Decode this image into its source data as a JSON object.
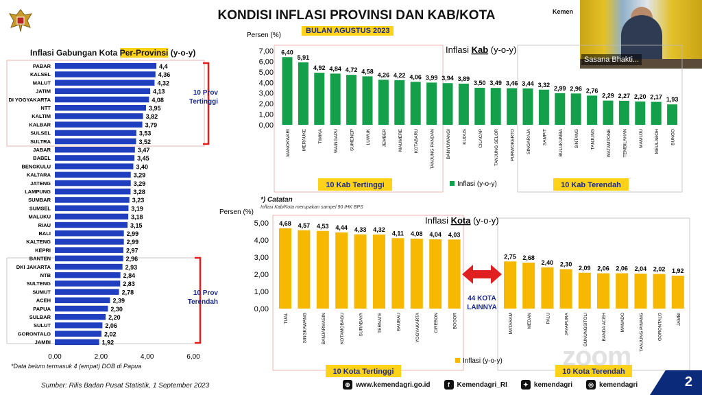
{
  "header": {
    "title": "KONDISI INFLASI PROVINSI DAN KAB/KOTA",
    "subtitle": "BULAN AGUSTUS 2023",
    "page_number": "2"
  },
  "video": {
    "name": "Sasana Bhakti...",
    "brand": "Kemen"
  },
  "left_panel": {
    "title_prefix": "Inflasi Gabungan Kota ",
    "title_highlight": "Per-Provinsi",
    "title_suffix": " (y-o-y)",
    "label_top": "10 Prov Tertinggi",
    "label_bottom": "10 Prov Terendah",
    "note": "*Data belum termasuk 4 (empat) DOB di Papua"
  },
  "kab_panel": {
    "ylabel": "Persen (%)",
    "title_prefix": "Inflasi ",
    "title_highlight": "Kab",
    "title_suffix": " (y-o-y)",
    "label_high": "10 Kab Tertinggi",
    "label_low": "10 Kab Terendah",
    "legend": "Inflasi (y-o-y)"
  },
  "kota_panel": {
    "ylabel": "Persen (%)",
    "title_prefix": "Inflasi ",
    "title_highlight": "Kota",
    "title_suffix": " (y-o-y)",
    "label_high": "10 Kota Tertinggi",
    "label_low": "10 Kota Terendah",
    "legend": "Inflasi (y-o-y)",
    "middle_label": "44 KOTA LAINNYA",
    "note_title": "*) Catatan",
    "note_text": "Inflasi Kab/Kota merupakan sampel 90 IHK BPS"
  },
  "footer": {
    "source": "Sumber: Rilis Badan Pusat Statistik,  1 September 2023",
    "website": "www.kemendagri.go.id",
    "facebook": "Kemendagri_RI",
    "twitter": "kemendagri",
    "instagram": "kemendagri"
  },
  "colors": {
    "blue": "#1f3fbf",
    "green": "#14a04a",
    "yellow": "#f6b800",
    "red": "#e02020"
  },
  "chart_data": [
    {
      "type": "bar",
      "orientation": "horizontal",
      "categories": [
        "PABAR",
        "KALSEL",
        "MALUT",
        "JATIM",
        "DI YOGYAKARTA",
        "NTT",
        "KALTIM",
        "KALBAR",
        "SULSEL",
        "SULTRA",
        "JABAR",
        "BABEL",
        "BENGKULU",
        "KALTARA",
        "JATENG",
        "LAMPUNG",
        "SUMBAR",
        "SUMSEL",
        "MALUKU",
        "RIAU",
        "BALI",
        "KALTENG",
        "KEPRI",
        "BANTEN",
        "DKI JAKARTA",
        "NTB",
        "SULTENG",
        "SUMUT",
        "ACEH",
        "PAPUA",
        "SULBAR",
        "SULUT",
        "GORONTALO",
        "JAMBI"
      ],
      "values": [
        4.4,
        4.36,
        4.32,
        4.13,
        4.08,
        3.95,
        3.82,
        3.79,
        3.53,
        3.52,
        3.47,
        3.45,
        3.4,
        3.29,
        3.29,
        3.28,
        3.23,
        3.19,
        3.18,
        3.15,
        2.99,
        2.99,
        2.97,
        2.96,
        2.93,
        2.84,
        2.83,
        2.78,
        2.39,
        2.3,
        2.2,
        2.06,
        2.02,
        1.92
      ],
      "labels": [
        "4,4",
        "4,36",
        "4,32",
        "4,13",
        "4,08",
        "3,95",
        "3,82",
        "3,79",
        "3,53",
        "3,52",
        "3,47",
        "3,45",
        "3,40",
        "3,29",
        "3,29",
        "3,28",
        "3,23",
        "3,19",
        "3,18",
        "3,15",
        "2,99",
        "2,99",
        "2,97",
        "2,96",
        "2,93",
        "2,84",
        "2,83",
        "2,78",
        "2,39",
        "2,30",
        "2,20",
        "2,06",
        "2,02",
        "1,92"
      ],
      "xlim": [
        0,
        6
      ],
      "xticks": [
        "0,00",
        "2,00",
        "4,00",
        "6,00"
      ]
    },
    {
      "type": "bar",
      "categories": [
        "MANOKWARI",
        "MERAUKE",
        "TIMIKA",
        "WAINGAPU",
        "SUMENEP",
        "LUWUK",
        "JEMBER",
        "MAUMERE",
        "KOTABARU",
        "TANJUNG PANDAN",
        "BANYUWANGI",
        "KUDUS",
        "CILACAP",
        "TANJUNG SELOR",
        "PURWOKERTO",
        "SINGARAJA",
        "SAMPIT",
        "BULUKUMBA",
        "SINTANG",
        "TANJUNG",
        "WATAMPONE",
        "TEMBILAHAN",
        "MAMUJU",
        "MEULABOH",
        "BUNGO"
      ],
      "values": [
        6.4,
        5.91,
        4.92,
        4.84,
        4.72,
        4.58,
        4.26,
        4.22,
        4.06,
        3.99,
        3.94,
        3.89,
        3.5,
        3.49,
        3.46,
        3.44,
        3.32,
        2.99,
        2.96,
        2.76,
        2.29,
        2.27,
        2.2,
        2.17,
        1.93
      ],
      "labels": [
        "6,40",
        "5,91",
        "4,92",
        "4,84",
        "4,72",
        "4,58",
        "4,26",
        "4,22",
        "4,06",
        "3,99",
        "3,94",
        "3,89",
        "3,50",
        "3,49",
        "3,46",
        "3,44",
        "3,32",
        "2,99",
        "2,96",
        "2,76",
        "2,29",
        "2,27",
        "2,20",
        "2,17",
        "1,93"
      ],
      "ylim": [
        0,
        7
      ],
      "yticks": [
        "0,00",
        "1,00",
        "2,00",
        "3,00",
        "4,00",
        "5,00",
        "6,00",
        "7,00"
      ]
    },
    {
      "type": "bar",
      "categories": [
        "TUAL",
        "SINGKAWANG",
        "BANJARMASIN",
        "KOTAMOBAGU",
        "SURABAYA",
        "TERNATE",
        "BAUBAU",
        "YOGYAKARTA",
        "CIREBON",
        "BOGOR",
        "MATARAM",
        "MEDAN",
        "PALU",
        "JAYAPURA",
        "GUNUNGSITOLI",
        "BANDA ACEH",
        "MANADO",
        "TANJUNG PINANG",
        "GORONTALO",
        "JAMBI"
      ],
      "values": [
        4.68,
        4.57,
        4.53,
        4.44,
        4.33,
        4.32,
        4.11,
        4.08,
        4.04,
        4.03,
        2.75,
        2.68,
        2.4,
        2.3,
        2.09,
        2.06,
        2.06,
        2.04,
        2.02,
        1.92
      ],
      "labels": [
        "4,68",
        "4,57",
        "4,53",
        "4,44",
        "4,33",
        "4,32",
        "4,11",
        "4,08",
        "4,04",
        "4,03",
        "2,75",
        "2,68",
        "2,40",
        "2,30",
        "2,09",
        "2,06",
        "2,06",
        "2,04",
        "2,02",
        "1,92"
      ],
      "ylim": [
        0,
        5
      ],
      "yticks": [
        "0,00",
        "1,00",
        "2,00",
        "3,00",
        "4,00",
        "5,00"
      ]
    }
  ]
}
